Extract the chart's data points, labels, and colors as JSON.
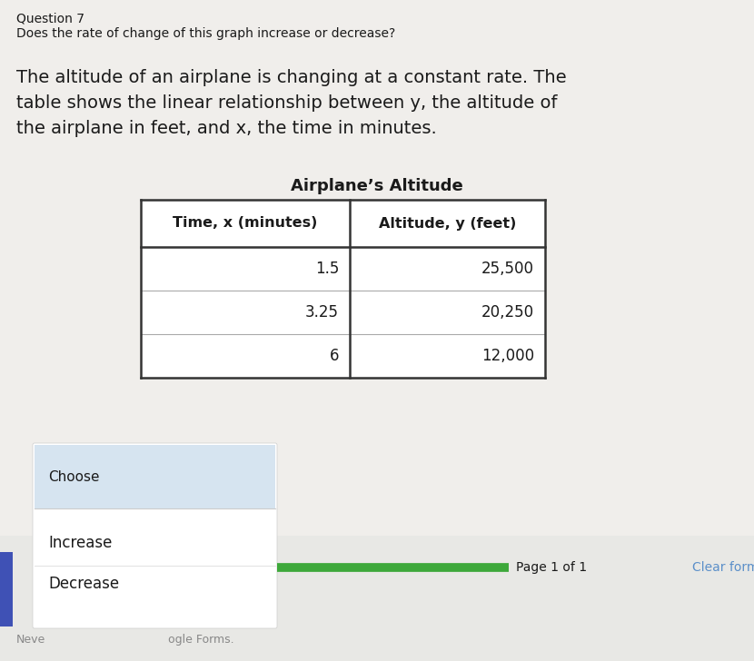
{
  "question_label": "Question 7",
  "question_text": "Does the rate of change of this graph increase or decrease?",
  "para_line1": "The altitude of an airplane is changing at a constant rate. The",
  "para_line2": "table shows the linear relationship between y, the altitude of",
  "para_line3": "the airplane in feet, and x, the time in minutes.",
  "table_title": "Airplane’s Altitude",
  "col_header1": "Time, x (minutes)",
  "col_header2": "Altitude, y (feet)",
  "rows": [
    [
      "1.5",
      "25,500"
    ],
    [
      "3.25",
      "20,250"
    ],
    [
      "6",
      "12,000"
    ]
  ],
  "dropdown_label": "Choose",
  "dropdown_options": [
    "Increase",
    "Decrease"
  ],
  "footer_page": "Page 1 of 1",
  "footer_clear": "Clear form",
  "footer_google": "ogle Forms.",
  "footer_neve": "Neve",
  "bg_color": "#f0eeeb",
  "white": "#ffffff",
  "choose_bg": "#d6e4f0",
  "option_bg": "#f8f8f5",
  "green_bar": "#3da83a",
  "blue_side": "#3f51b5",
  "text_dark": "#1a1a1a",
  "text_gray": "#888888",
  "text_blue": "#5b8fc9",
  "border_dark": "#333333",
  "border_light": "#aaaaaa"
}
